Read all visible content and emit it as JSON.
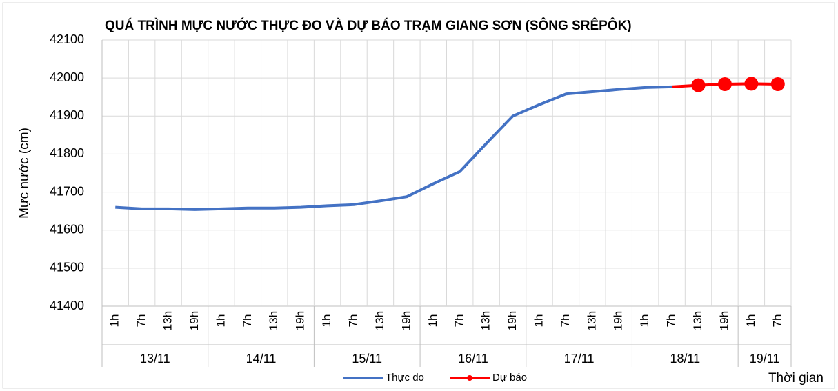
{
  "chart_data": {
    "type": "line",
    "title": "QUÁ TRÌNH MỰC NƯỚC THỰC ĐO VÀ DỰ BÁO TRẠM GIANG SƠN (SÔNG SRÊPÔK)",
    "y_label": "Mực nước (cm)",
    "x_label": "Thời gian",
    "groups": [
      {
        "label": "13/11",
        "categories": [
          "1h",
          "7h",
          "13h",
          "19h"
        ]
      },
      {
        "label": "14/11",
        "categories": [
          "1h",
          "7h",
          "13h",
          "19h"
        ]
      },
      {
        "label": "15/11",
        "categories": [
          "1h",
          "7h",
          "13h",
          "19h"
        ]
      },
      {
        "label": "16/11",
        "categories": [
          "1h",
          "7h",
          "13h",
          "19h"
        ]
      },
      {
        "label": "17/11",
        "categories": [
          "1h",
          "7h",
          "13h",
          "19h"
        ]
      },
      {
        "label": "18/11",
        "categories": [
          "1h",
          "7h",
          "13h",
          "19h"
        ]
      },
      {
        "label": "19/11",
        "categories": [
          "1h",
          "7h"
        ]
      }
    ],
    "series": [
      {
        "name": "Thực đo",
        "color": "#4472c4",
        "values": [
          41660,
          41656,
          41656,
          41654,
          41656,
          41658,
          41658,
          41660,
          41664,
          41667,
          41677,
          41688,
          41722,
          41754,
          41828,
          41900,
          41930,
          41958,
          41964,
          41970,
          41975,
          41977,
          null,
          null,
          null,
          null
        ]
      },
      {
        "name": "Dự báo",
        "color": "#ff0000",
        "values": [
          null,
          null,
          null,
          null,
          null,
          null,
          null,
          null,
          null,
          null,
          null,
          null,
          null,
          null,
          null,
          null,
          null,
          null,
          null,
          null,
          null,
          null,
          41981,
          41984,
          41985,
          41984
        ]
      }
    ],
    "ylim": [
      41400,
      42100
    ],
    "yticks": [
      41400,
      41500,
      41600,
      41700,
      41800,
      41900,
      42000,
      42100
    ],
    "grid": true
  }
}
